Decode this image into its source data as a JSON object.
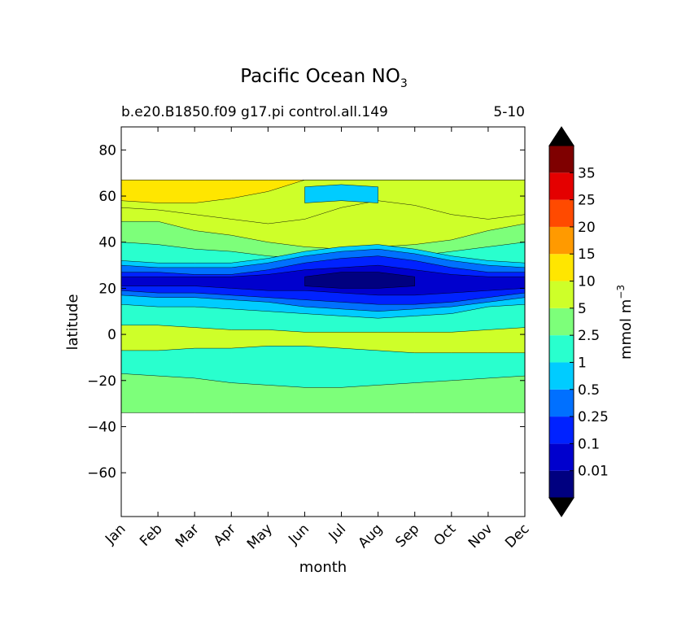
{
  "chart_data": {
    "type": "filled-contour",
    "title": "Pacific Ocean NO",
    "title_subscript": "3",
    "subtitle_left": "b.e20.B1850.f09 g17.pi control.all.149",
    "subtitle_right": "5-10",
    "xlabel": "month",
    "ylabel": "latitude",
    "x_ticks": [
      "Jan",
      "Feb",
      "Mar",
      "Apr",
      "May",
      "Jun",
      "Jul",
      "Aug",
      "Sep",
      "Oct",
      "Nov",
      "Dec"
    ],
    "y_ticks": [
      80,
      60,
      40,
      20,
      0,
      -20,
      -40,
      -60
    ],
    "y_tick_labels": [
      "80",
      "60",
      "40",
      "20",
      "0",
      "−20",
      "−40",
      "−60"
    ],
    "xlim": [
      0,
      11
    ],
    "ylim": [
      -79,
      90
    ],
    "data_lat_range": [
      -34,
      67
    ],
    "colorbar": {
      "label": "mmol m",
      "label_superscript": "−3",
      "extend": "both",
      "levels": [
        0,
        0.01,
        0.1,
        0.25,
        0.5,
        1,
        2.5,
        5,
        10,
        15,
        20,
        25,
        35,
        50
      ],
      "tick_labels": [
        "0.01",
        "0.1",
        "0.25",
        "0.5",
        "1",
        "2.5",
        "5",
        "10",
        "15",
        "20",
        "25",
        "35"
      ],
      "colors": [
        "#000080",
        "#0000cd",
        "#0022ff",
        "#0070ff",
        "#00ccff",
        "#29ffce",
        "#7dff7a",
        "#ceff29",
        "#ffe600",
        "#ff9a00",
        "#ff4a00",
        "#e40000",
        "#7f0000"
      ],
      "under_color": "#000000",
      "over_color": "#000000"
    },
    "contour_fields": {
      "description": "latitude of level boundaries by month (Jan..Dec); smooth climatology",
      "band_layers": [
        {
          "level": 2.5,
          "upper": [
            49,
            49,
            45,
            43,
            40,
            38,
            37,
            38,
            39,
            41,
            45,
            48
          ],
          "lower": [
            -34,
            -34,
            -34,
            -34,
            -34,
            -34,
            -34,
            -34,
            -34,
            -34,
            -34,
            -34
          ]
        },
        {
          "level": 1,
          "upper": [
            40,
            39,
            37,
            36,
            34,
            33,
            32,
            33,
            34,
            36,
            38,
            40
          ],
          "lower": [
            -17,
            -18,
            -19,
            -21,
            -22,
            -23,
            -23,
            -22,
            -21,
            -20,
            -19,
            -18
          ]
        },
        {
          "level": 0.5,
          "upper": [
            32,
            31,
            31,
            31,
            33,
            36,
            38,
            39,
            37,
            34,
            32,
            31
          ],
          "lower": [
            13,
            12,
            12,
            11,
            10,
            9,
            8,
            7,
            8,
            9,
            12,
            13
          ]
        },
        {
          "level": 0.25,
          "upper": [
            30,
            29,
            29,
            29,
            31,
            34,
            36,
            37,
            35,
            32,
            30,
            29
          ],
          "lower": [
            17,
            16,
            16,
            15,
            14,
            12,
            11,
            10,
            11,
            12,
            14,
            16
          ]
        },
        {
          "level": 0.1,
          "upper": [
            27,
            27,
            26,
            26,
            28,
            31,
            33,
            34,
            32,
            29,
            27,
            27
          ],
          "lower": [
            19,
            18,
            18,
            17,
            16,
            15,
            14,
            13,
            13,
            14,
            16,
            18
          ]
        },
        {
          "level": 0.01,
          "upper": [
            25,
            25,
            25,
            25,
            26,
            28,
            29,
            30,
            28,
            26,
            25,
            25
          ],
          "lower": [
            21,
            21,
            21,
            20,
            19,
            19,
            18,
            17,
            17,
            18,
            19,
            20
          ]
        },
        {
          "level": 0,
          "upper": [
            null,
            null,
            null,
            null,
            null,
            25,
            27,
            27,
            25,
            null,
            null,
            null
          ],
          "lower": [
            null,
            null,
            null,
            null,
            null,
            21,
            20,
            20,
            21,
            null,
            null,
            null
          ]
        }
      ],
      "equatorial_band": {
        "level": 5,
        "upper": [
          4,
          4,
          3,
          2,
          2,
          1,
          1,
          1,
          1,
          1,
          2,
          3
        ],
        "lower": [
          -7,
          -7,
          -6,
          -6,
          -5,
          -5,
          -6,
          -7,
          -8,
          -8,
          -8,
          -8
        ]
      },
      "high_lat_layers": [
        {
          "level": 5,
          "lower": [
            55,
            54,
            52,
            50,
            48,
            50,
            55,
            58,
            56,
            52,
            50,
            52
          ],
          "upper": [
            67,
            67,
            67,
            67,
            67,
            67,
            67,
            67,
            67,
            67,
            67,
            67
          ]
        },
        {
          "level": 10,
          "lower": [
            58,
            57,
            57,
            59,
            62,
            67,
            67,
            67,
            67,
            67,
            67,
            67
          ],
          "upper": [
            67,
            67,
            67,
            67,
            67,
            67,
            67,
            67,
            67,
            67,
            67,
            67
          ]
        },
        {
          "level": 0.5,
          "lower": [
            null,
            null,
            null,
            null,
            null,
            57,
            58,
            57,
            null,
            null,
            null,
            null
          ],
          "upper": [
            null,
            null,
            null,
            null,
            null,
            64,
            65,
            64,
            null,
            null,
            null,
            null
          ]
        }
      ]
    }
  }
}
